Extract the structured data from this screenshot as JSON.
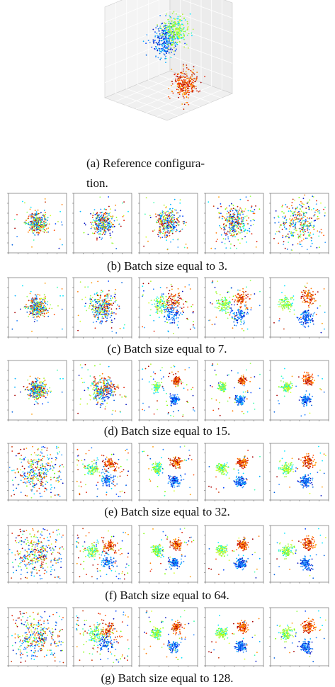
{
  "figure": {
    "subfigures": [
      {
        "caption_lines": [
          "(a) Reference configura-",
          "tion."
        ]
      },
      {
        "caption": "(b) Batch size equal to 3."
      },
      {
        "caption": "(c) Batch size equal to 7."
      },
      {
        "caption": "(d) Batch size equal to 15."
      },
      {
        "caption": "(e) Batch size equal to 32."
      },
      {
        "caption": "(f) Batch size equal to 64."
      },
      {
        "caption": "(g) Batch size equal to 128."
      }
    ]
  }
}
